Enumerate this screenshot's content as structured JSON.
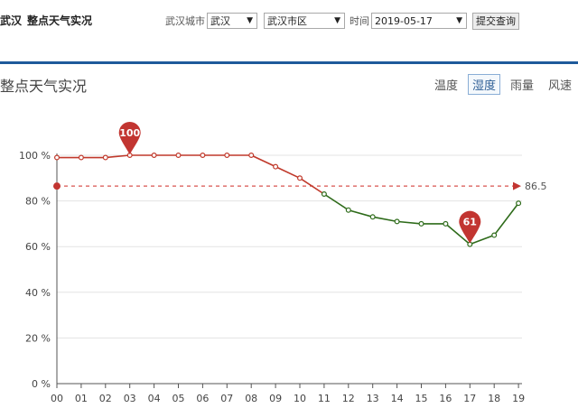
{
  "header": {
    "city": "武汉",
    "page_title": "整点天气实况",
    "filters": {
      "city_label": "武汉城市",
      "city_value": "武汉",
      "district_value": "武汉市区",
      "time_label": "时间",
      "date_value": "2019-05-17",
      "submit_label": "提交查询"
    }
  },
  "section": {
    "title": "整点天气实况",
    "tabs": [
      "温度",
      "湿度",
      "雨量",
      "风速"
    ],
    "active_tab": "湿度"
  },
  "colors": {
    "accent_blue": "#1e5a9b",
    "line_red": "#c0392b",
    "line_green": "#2e6b1a",
    "marker_red": "#c23531"
  },
  "chart_data": {
    "type": "line",
    "x": [
      "00",
      "01",
      "02",
      "03",
      "04",
      "05",
      "06",
      "07",
      "08",
      "09",
      "10",
      "11",
      "12",
      "13",
      "14",
      "15",
      "16",
      "17",
      "18",
      "19"
    ],
    "values": [
      99,
      99,
      99,
      100,
      100,
      100,
      100,
      100,
      100,
      95,
      90,
      83,
      76,
      73,
      71,
      70,
      70,
      61,
      65,
      79
    ],
    "y_ticks": [
      "0 %",
      "20 %",
      "40 %",
      "60 %",
      "80 %",
      "100 %"
    ],
    "ylim": [
      0,
      100
    ],
    "max_label": "100",
    "max_index": 3,
    "min_label": "61",
    "min_index": 17,
    "average": 86.5,
    "average_label": "86.5",
    "grid": true
  }
}
